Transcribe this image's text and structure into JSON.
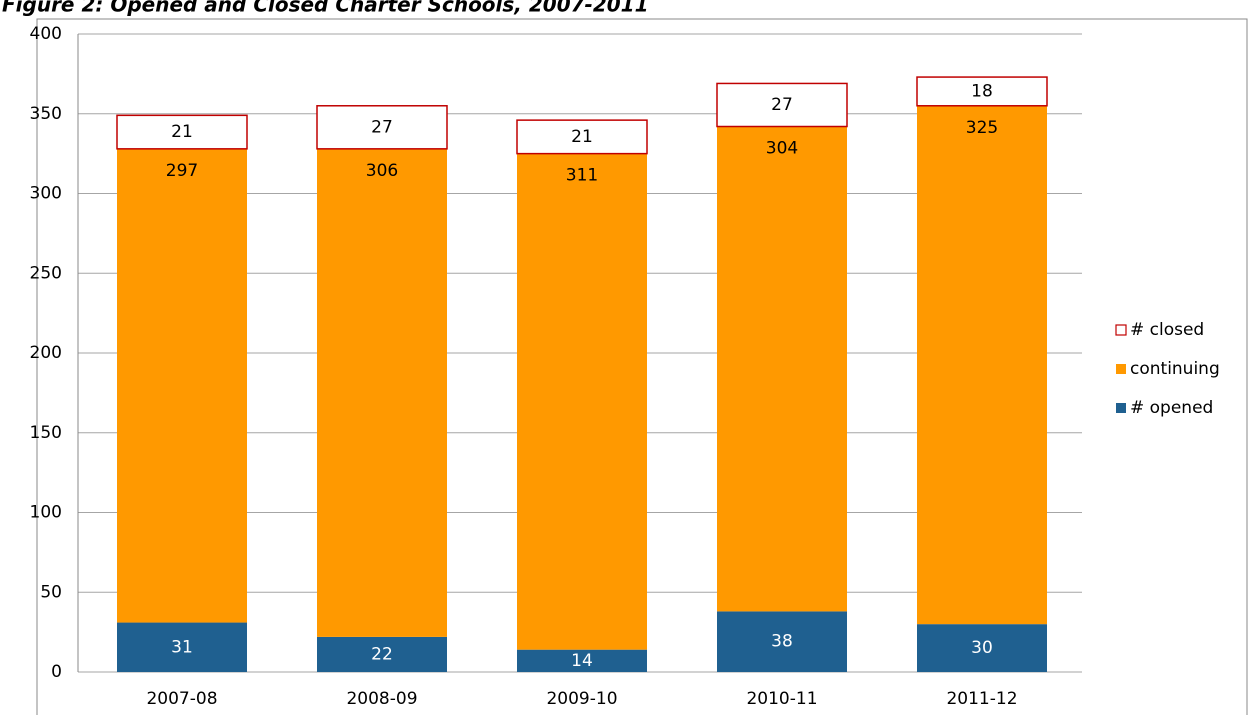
{
  "chart_data": {
    "type": "stacked_bar",
    "title": "Figure 2: Opened and Closed Charter Schools, 2007-2011",
    "categories": [
      "2007-08",
      "2008-09",
      "2009-10",
      "2010-11",
      "2011-12"
    ],
    "series": [
      {
        "name": "# opened",
        "color": "#1f6090",
        "label_color": "#ffffff",
        "values": [
          31,
          22,
          14,
          38,
          30
        ]
      },
      {
        "name": "continuing",
        "color": "#ff9900",
        "label_color": "#000000",
        "values": [
          297,
          306,
          311,
          304,
          325
        ]
      },
      {
        "name": "# closed",
        "color": "#ffffff",
        "edgecolor": "#c00000",
        "label_color": "#000000",
        "values": [
          21,
          27,
          21,
          27,
          18
        ]
      }
    ],
    "ylim": [
      0,
      400
    ],
    "yticks": [
      0,
      50,
      100,
      150,
      200,
      250,
      300,
      350,
      400
    ],
    "grid": true,
    "legend": "right"
  }
}
